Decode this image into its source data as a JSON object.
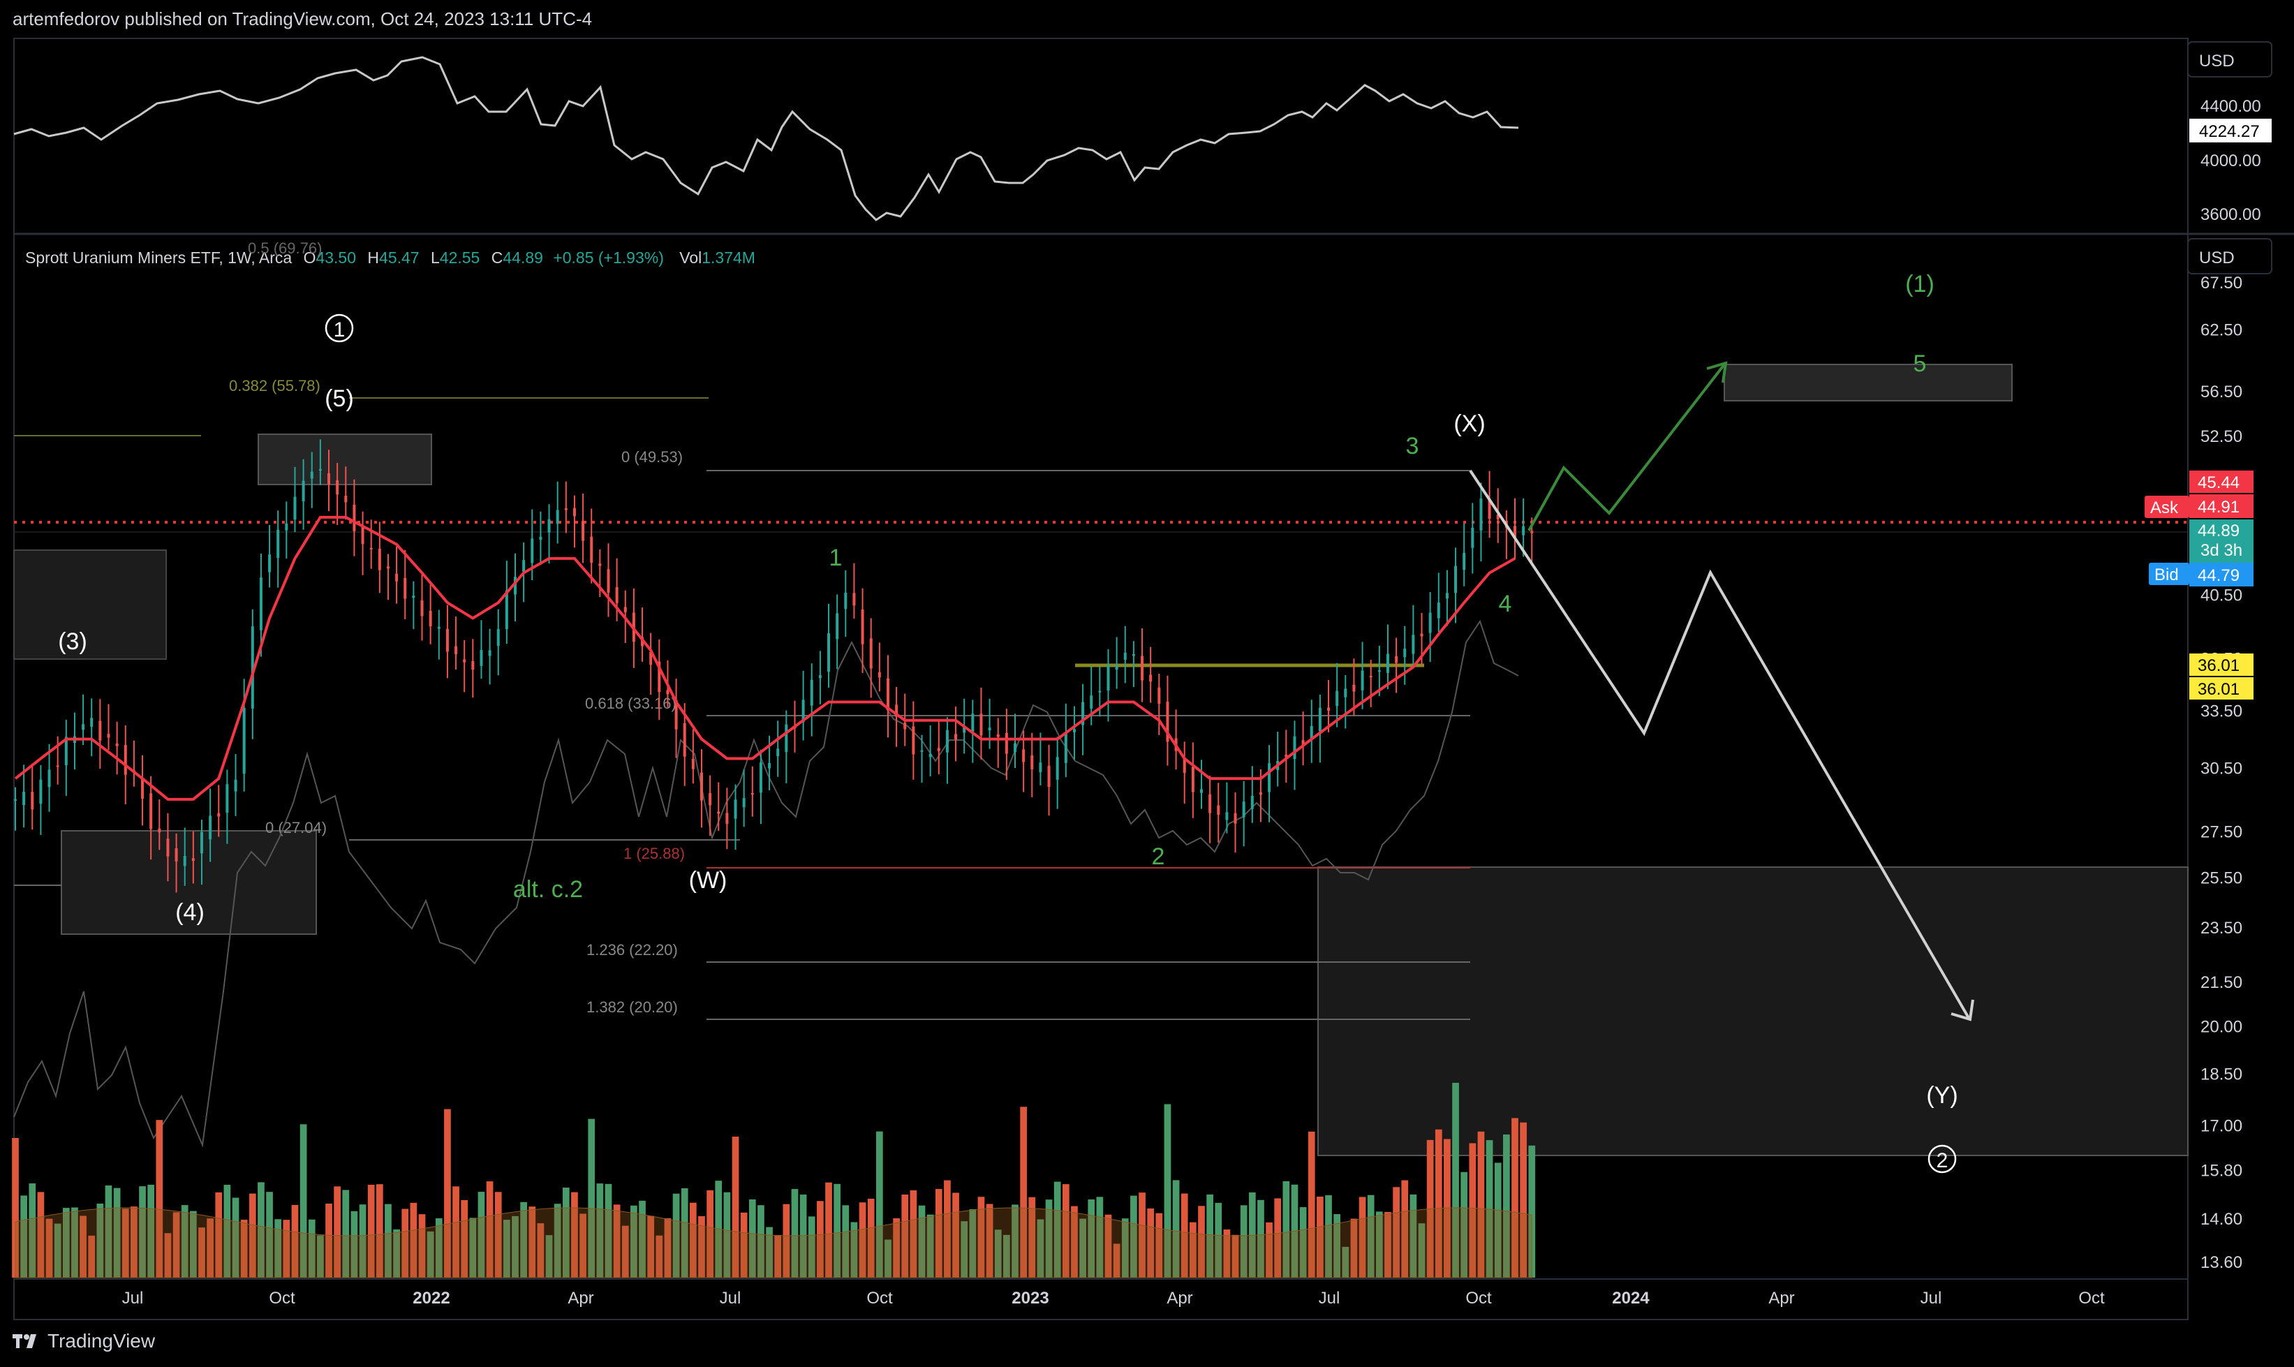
{
  "header": "artemfedorov published on TradingView.com, Oct 24, 2023 13:11 UTC-4",
  "footer": {
    "brand": "TradingView"
  },
  "colors": {
    "up": "#26a69a",
    "down": "#ef5350",
    "ma": "#f23645",
    "vol_up": "#4a9b6a",
    "vol_down": "#e0583c",
    "wave_green": "#4caf50",
    "grid": "#1a1a1a",
    "panel_border": "#2a2e39"
  },
  "top_pane": {
    "currency": "USD",
    "ticks": [
      "4400.00",
      "4000.00",
      "3600.00"
    ],
    "last_value": "4224.27"
  },
  "main_pane": {
    "currency": "USD",
    "legend": {
      "name": "Sprott Uranium Miners ETF, 1W, Arca",
      "o_label": "O",
      "o": "43.50",
      "h_label": "H",
      "h": "45.47",
      "l_label": "L",
      "l": "42.55",
      "c_label": "C",
      "c": "44.89",
      "change": "+0.85 (+1.93%)",
      "vol_label": "Vol",
      "vol": "1.374M"
    },
    "price_ticks": [
      "67.50",
      "62.50",
      "56.50",
      "52.50",
      "45.44",
      "40.50",
      "36.50",
      "33.50",
      "30.50",
      "27.50",
      "25.50",
      "23.50",
      "21.50",
      "20.00",
      "18.50",
      "17.00",
      "15.80",
      "14.60",
      "13.60"
    ],
    "badges": {
      "ask_label": "Ask",
      "ask": "44.91",
      "high_flag": "45.44",
      "last": "44.89",
      "countdown": "3d 3h",
      "bid_label": "Bid",
      "bid": "44.79",
      "level1": "36.01",
      "level2": "36.01"
    },
    "time_labels": [
      "Jul",
      "Oct",
      "2022",
      "Apr",
      "Jul",
      "Oct",
      "2023",
      "Apr",
      "Jul",
      "Oct",
      "2024",
      "Apr",
      "Jul",
      "Oct"
    ],
    "fib": {
      "f05": "0.5 (69.76)",
      "f0382": "0.382 (55.78)",
      "f0_top": "0 (49.53)",
      "f0618": "0.618 (33.16)",
      "f0_low": "0 (27.04)",
      "f1": "1 (25.88)",
      "f1236": "1.236 (22.20)",
      "f1382": "1.382 (20.20)"
    },
    "waves": {
      "w_circle1": "1",
      "w5": "(5)",
      "w3": "(3)",
      "w4": "(4)",
      "wW": "(W)",
      "wX": "(X)",
      "wY": "(Y)",
      "w_circle2": "2",
      "altc2": "alt. c.2",
      "g1": "1",
      "g2": "2",
      "g3": "3",
      "g4": "4",
      "g_1": "(1)",
      "g5": "5"
    }
  },
  "chart_data": {
    "type": "candlestick",
    "title": "Sprott Uranium Miners ETF, 1W, Arca",
    "series": [
      {
        "name": "price",
        "close_path": [
          29,
          31,
          33,
          32,
          30,
          27,
          26,
          28,
          30,
          42,
          46,
          50,
          48,
          44,
          42,
          40,
          38,
          36,
          37,
          42,
          45,
          47,
          43,
          40,
          37,
          34,
          30,
          28,
          29,
          31,
          33,
          36,
          41,
          36,
          33,
          31,
          32,
          33,
          32,
          31,
          30,
          33,
          35,
          37,
          35,
          31,
          29,
          28,
          29,
          31,
          32,
          34,
          35,
          36,
          37,
          39,
          42,
          47,
          45,
          44.89
        ]
      },
      {
        "name": "moving-average",
        "ma_path": [
          30,
          31,
          32,
          32,
          31,
          30,
          29,
          29,
          30,
          34,
          39,
          43,
          46,
          46,
          45,
          44,
          42,
          40,
          39,
          40,
          42,
          43,
          43,
          41,
          39,
          37,
          34,
          32,
          31,
          31,
          32,
          33,
          34,
          34,
          34,
          33,
          33,
          33,
          32,
          32,
          32,
          32,
          33,
          34,
          34,
          33,
          31,
          30,
          30,
          30,
          31,
          32,
          33,
          34,
          35,
          36,
          38,
          40,
          42,
          43
        ]
      }
    ],
    "ylim": [
      13.6,
      69.76
    ],
    "y_scale": "log",
    "legend": "top-left"
  }
}
